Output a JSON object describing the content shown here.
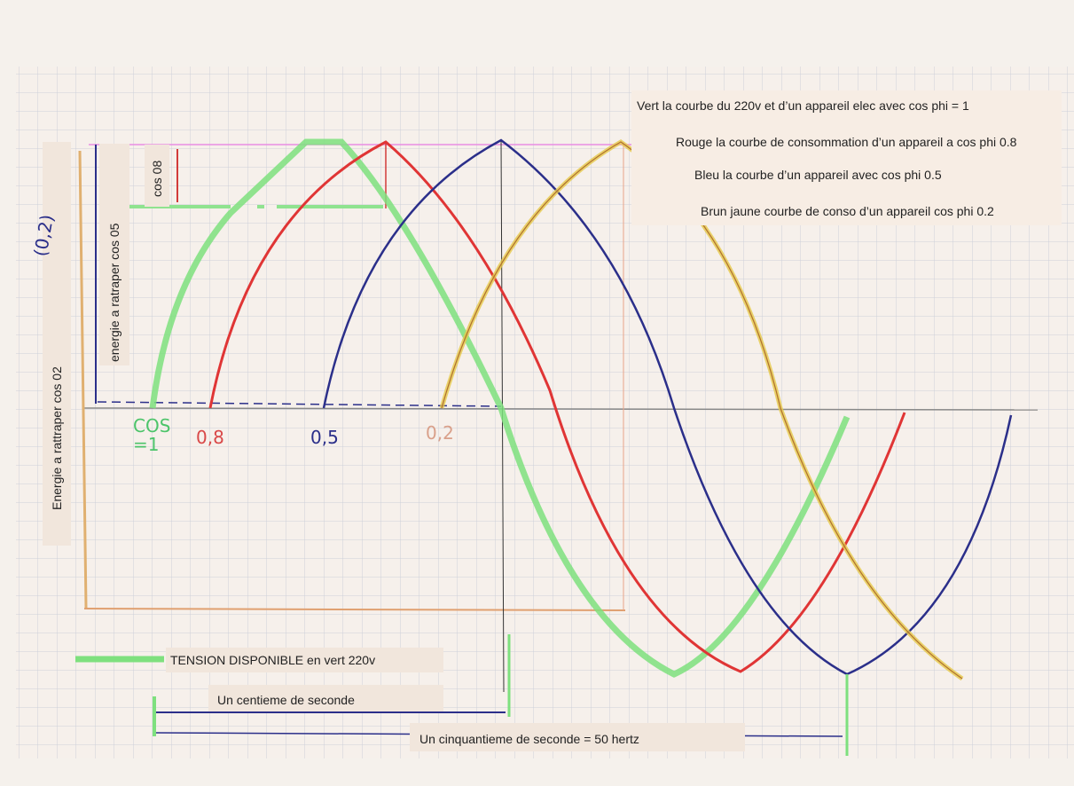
{
  "legend": [
    "Vert la courbe du 220v et d’un appareil elec avec cos phi = 1",
    "Rouge  la courbe de consommation d’un appareil  a cos phi 0.8",
    "Bleu  la courbe d’un appareil  avec cos phi 0.5",
    "Brun jaune  courbe de conso  d’un appareil cos phi 0.2"
  ],
  "side_labels": {
    "cos_08": "cos 08",
    "cos_05": "energie a ratraper cos 05",
    "cos_02": "Energie  a  rattraper  cos 02",
    "point": "(0,2)"
  },
  "axis_marks": [
    "COS",
    "=1",
    "0,8",
    "0,5",
    "0,2"
  ],
  "footer": {
    "tension": "TENSION DISPONIBLE  en vert  220v",
    "centieme": "Un  centieme  de  seconde",
    "cinquantieme": "Un  cinquantieme  de  seconde  = 50 hertz"
  }
}
